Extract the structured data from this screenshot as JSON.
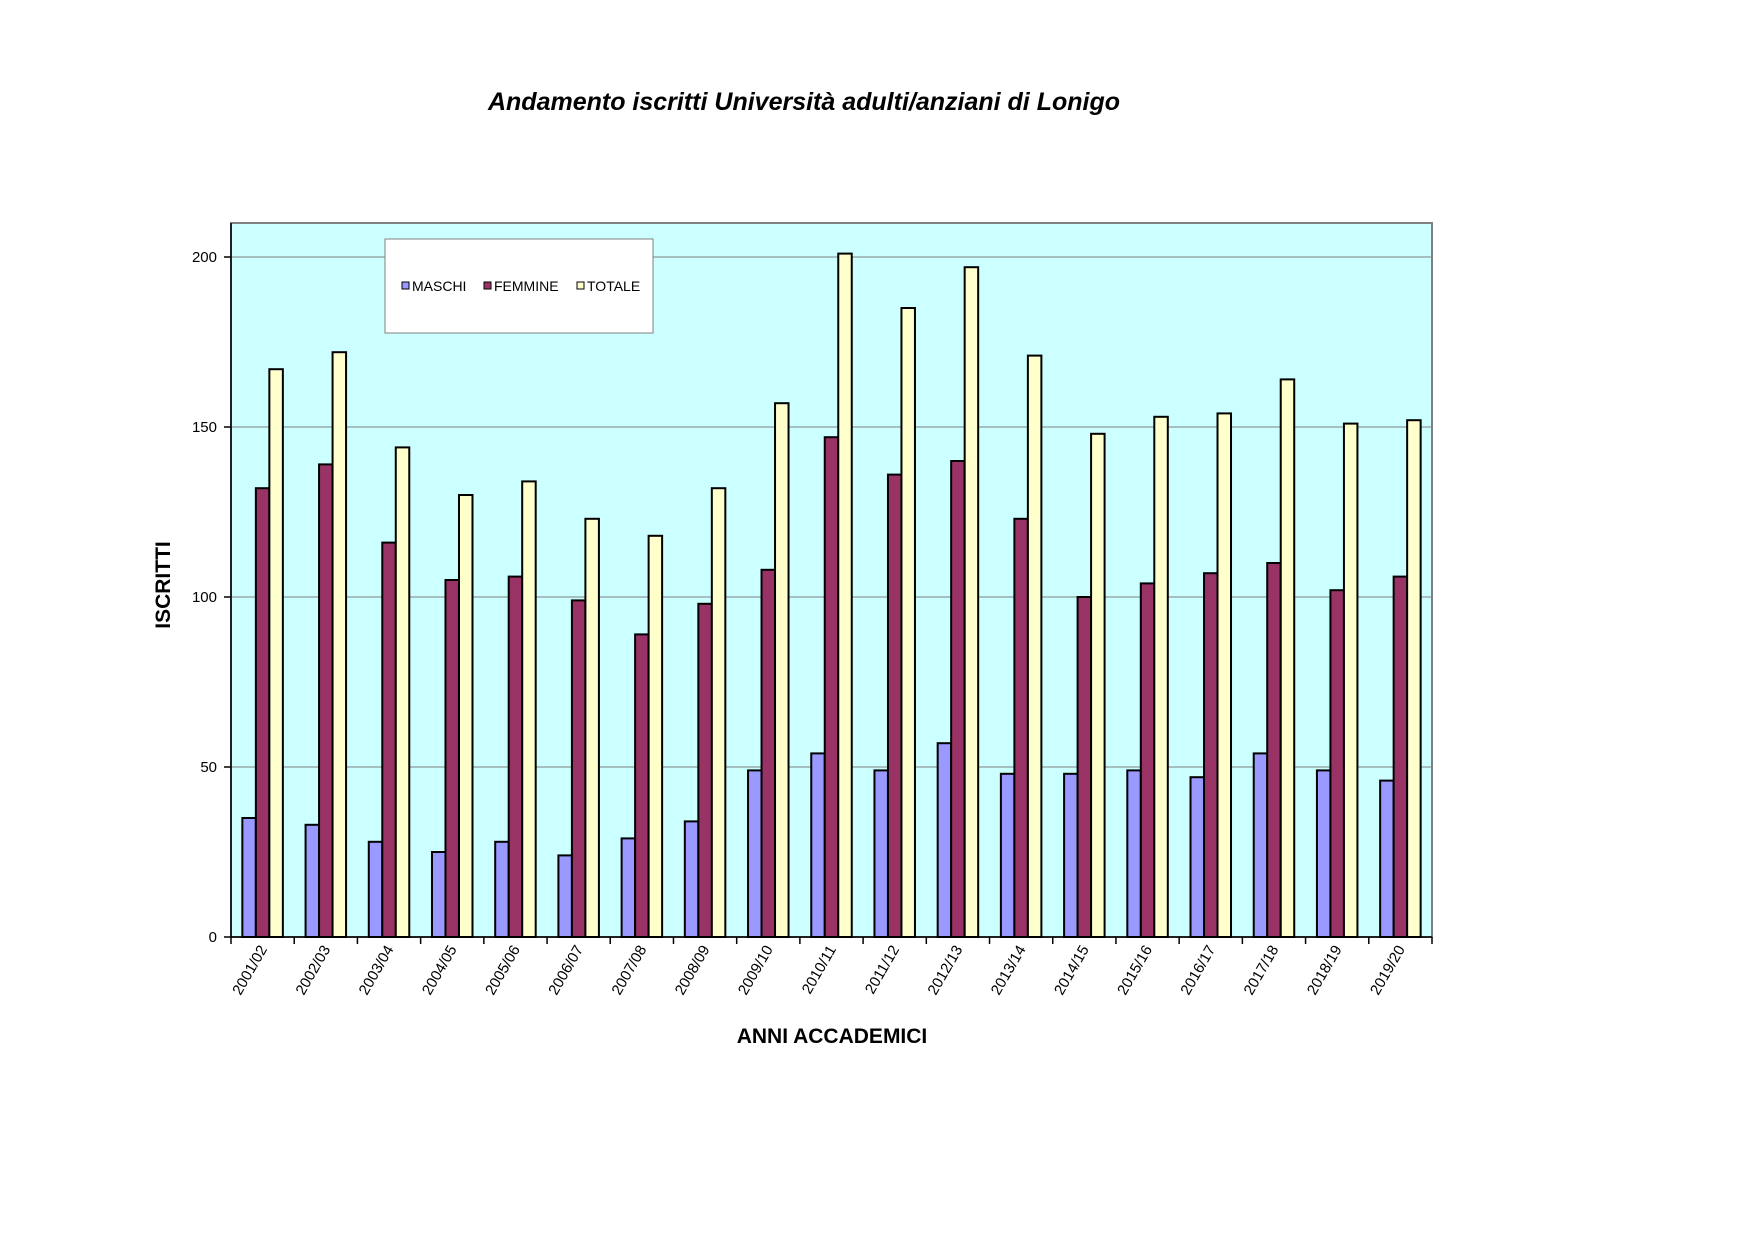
{
  "chart_data": {
    "type": "bar",
    "title": "Andamento iscritti Università adulti/anziani di Lonigo",
    "xlabel": "ANNI ACCADEMICI",
    "ylabel": "ISCRITTI",
    "ylim": [
      0,
      210
    ],
    "yticks": [
      0,
      50,
      100,
      150,
      200
    ],
    "grid": true,
    "legend_position": "top-left",
    "categories": [
      "2001/02",
      "2002/03",
      "2003/04",
      "2004/05",
      "2005/06",
      "2006/07",
      "2007/08",
      "2008/09",
      "2009/10",
      "2010/11",
      "2011/12",
      "2012/13",
      "2013/14",
      "2014/15",
      "2015/16",
      "2016/17",
      "2017/18",
      "2018/19",
      "2019/20"
    ],
    "series": [
      {
        "name": "MASCHI",
        "color": "#9999ff",
        "values": [
          35,
          33,
          28,
          25,
          28,
          24,
          29,
          34,
          49,
          54,
          49,
          57,
          48,
          48,
          49,
          47,
          54,
          49,
          46
        ]
      },
      {
        "name": "FEMMINE",
        "color": "#993366",
        "values": [
          132,
          139,
          116,
          105,
          106,
          99,
          89,
          98,
          108,
          147,
          136,
          140,
          123,
          100,
          104,
          107,
          110,
          102,
          106
        ]
      },
      {
        "name": "TOTALE",
        "color": "#ffffcc",
        "values": [
          167,
          172,
          144,
          130,
          134,
          123,
          118,
          132,
          157,
          201,
          185,
          197,
          171,
          148,
          153,
          154,
          164,
          151,
          152
        ]
      }
    ],
    "plot_background": "#ccffff",
    "grid_color": "#808080"
  }
}
